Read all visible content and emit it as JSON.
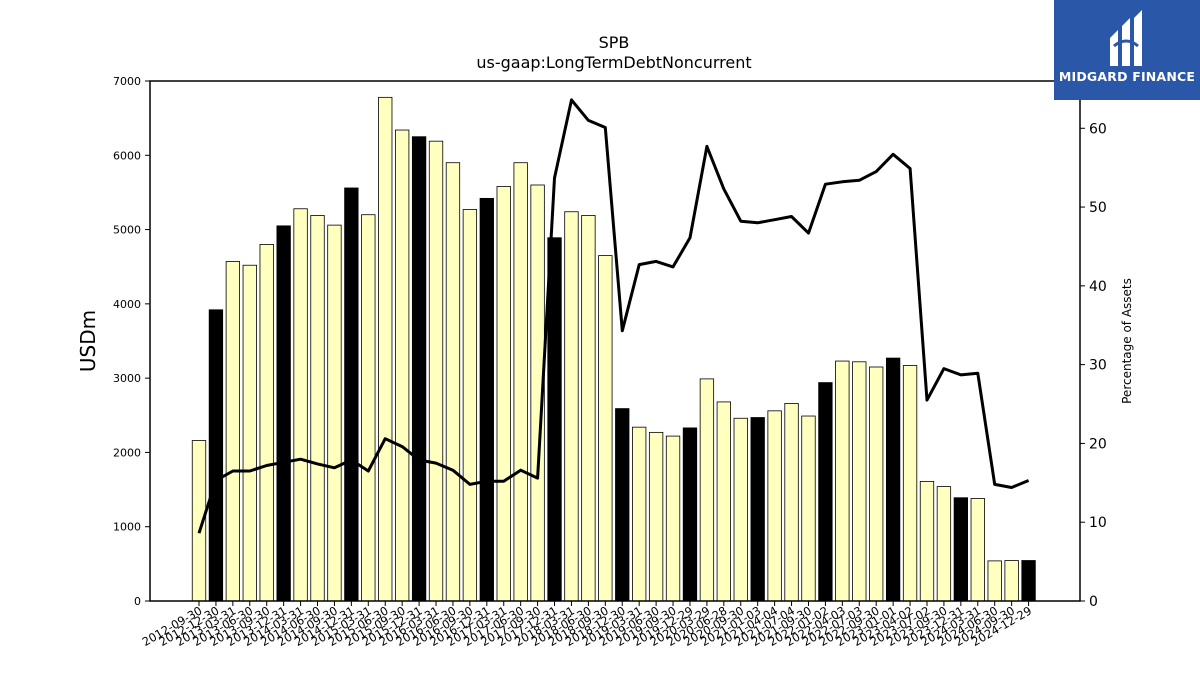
{
  "logo": {
    "text": "MIDGARD FINANCE",
    "bg": "#2b57a8"
  },
  "chart_data": {
    "type": "bar",
    "title": "SPB",
    "subtitle": "us-gaap:LongTermDebtNoncurrent",
    "ylabel": "USDm",
    "ylabel_right": "Percentage of Assets",
    "ylim": [
      0,
      7000
    ],
    "ylim_right": [
      0,
      66
    ],
    "yticks": [
      0,
      1000,
      2000,
      3000,
      4000,
      5000,
      6000,
      7000
    ],
    "yticks_right": [
      0,
      10,
      20,
      30,
      40,
      50,
      60
    ],
    "colors": {
      "bar_light": "#ffffc0",
      "bar_dark": "#000000",
      "line": "#000000"
    },
    "tick_labels": [
      "2012-09-30",
      "2012-12-30",
      "2013-03-31",
      "2013-06-30",
      "2013-09-30",
      "2013-12-31",
      "2014-03-31",
      "2014-06-30",
      "2014-09-30",
      "2014-12-31",
      "2015-03-31",
      "2015-06-30",
      "2015-09-30",
      "2015-12-31",
      "2016-03-31",
      "2016-06-30",
      "2016-09-30",
      "2016-12-31",
      "2017-03-31",
      "2017-06-30",
      "2017-09-30",
      "2017-12-31",
      "2018-03-31",
      "2018-06-30",
      "2018-09-30",
      "2018-12-30",
      "2019-03-31",
      "2019-06-30",
      "2019-09-30",
      "2019-12-29",
      "2020-03-29",
      "2020-06-28",
      "2020-09-30",
      "2021-01-03",
      "2021-04-04",
      "2021-07-04",
      "2021-09-30",
      "2022-01-02",
      "2022-04-03",
      "2022-07-03",
      "2022-09-30",
      "2023-01-01",
      "2023-04-02",
      "2023-07-02",
      "2023-09-30",
      "2023-12-31",
      "2024-03-31",
      "2024-06-30",
      "2024-09-30",
      "2024-12-29"
    ],
    "values": [
      2160,
      3920,
      4570,
      4520,
      4800,
      5050,
      5280,
      5190,
      5060,
      5560,
      5200,
      6780,
      6340,
      6250,
      6190,
      5900,
      5270,
      5420,
      5580,
      5900,
      5600,
      4890,
      5240,
      5190,
      4650,
      2590,
      2340,
      2270,
      2220,
      2330,
      2990,
      2680,
      2460,
      2470,
      2560,
      2660,
      2490,
      2940,
      3230,
      3220,
      3150,
      3270,
      3170,
      1610,
      1540,
      1390,
      1380,
      540,
      545,
      545
    ],
    "highlight": [
      false,
      true,
      false,
      false,
      false,
      true,
      false,
      false,
      false,
      true,
      false,
      false,
      false,
      true,
      false,
      false,
      false,
      true,
      false,
      false,
      false,
      true,
      false,
      false,
      false,
      true,
      false,
      false,
      false,
      true,
      false,
      false,
      false,
      true,
      false,
      false,
      false,
      true,
      false,
      false,
      false,
      true,
      false,
      false,
      false,
      true,
      false,
      false,
      false,
      true
    ],
    "pct_assets": [
      8.6,
      15.3,
      16.5,
      16.5,
      17.2,
      17.6,
      18.0,
      17.4,
      16.9,
      17.9,
      16.5,
      20.6,
      19.6,
      17.9,
      17.5,
      16.6,
      14.8,
      15.2,
      15.2,
      16.6,
      15.6,
      53.7,
      63.6,
      61.0,
      60.1,
      34.3,
      42.7,
      43.1,
      42.4,
      46.1,
      57.7,
      52.3,
      48.2,
      48.0,
      48.4,
      48.8,
      46.7,
      52.9,
      53.2,
      53.4,
      54.5,
      56.7,
      54.9,
      25.5,
      29.5,
      28.7,
      28.9,
      14.8,
      14.4,
      15.3
    ]
  }
}
